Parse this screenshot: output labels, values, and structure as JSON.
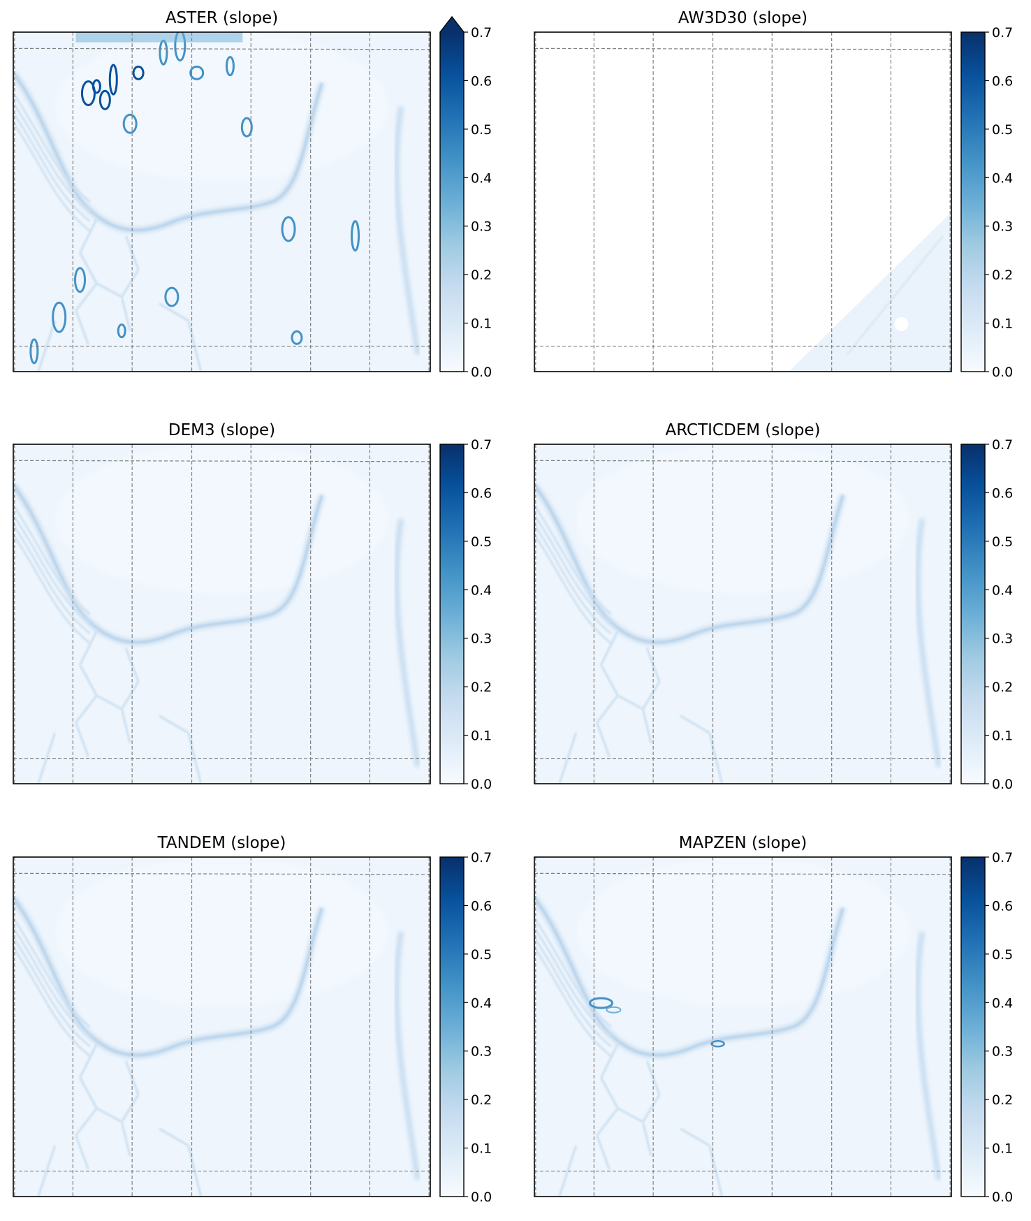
{
  "figure": {
    "colormap": "Blues",
    "colormap_stops": [
      "#f7fbff",
      "#deebf7",
      "#c6dbef",
      "#9ecae1",
      "#6baed6",
      "#4292c6",
      "#2171b5",
      "#08519c",
      "#08306b"
    ],
    "grid_color": "#808080",
    "axis_color": "#000000"
  },
  "chart_data": [
    {
      "type": "heatmap",
      "title": "ASTER (slope)",
      "colorbar": {
        "ticks": [
          "0.0",
          "0.1",
          "0.2",
          "0.3",
          "0.4",
          "0.5",
          "0.6",
          "0.7"
        ],
        "range": [
          0.0,
          0.7
        ],
        "extend": "max"
      },
      "grid": "dashed",
      "legend": "none",
      "description_values": {
        "typical_slope": 0.05,
        "max_slope": 0.7
      }
    },
    {
      "type": "heatmap",
      "title": "AW3D30 (slope)",
      "colorbar": {
        "ticks": [
          "0.0",
          "0.1",
          "0.2",
          "0.3",
          "0.4",
          "0.5",
          "0.6",
          "0.7"
        ],
        "range": [
          0.0,
          0.7
        ],
        "extend": "neither"
      },
      "grid": "dashed",
      "legend": "none",
      "description_values": {
        "typical_slope": 0.04,
        "max_slope": 0.15
      }
    },
    {
      "type": "heatmap",
      "title": "DEM3 (slope)",
      "colorbar": {
        "ticks": [
          "0.0",
          "0.1",
          "0.2",
          "0.3",
          "0.4",
          "0.5",
          "0.6",
          "0.7"
        ],
        "range": [
          0.0,
          0.7
        ],
        "extend": "neither"
      },
      "grid": "dashed",
      "legend": "none",
      "description_values": {
        "typical_slope": 0.04,
        "max_slope": 0.2
      }
    },
    {
      "type": "heatmap",
      "title": "ARCTICDEM (slope)",
      "colorbar": {
        "ticks": [
          "0.0",
          "0.1",
          "0.2",
          "0.3",
          "0.4",
          "0.5",
          "0.6",
          "0.7"
        ],
        "range": [
          0.0,
          0.7
        ],
        "extend": "neither"
      },
      "grid": "dashed",
      "legend": "none",
      "description_values": {
        "typical_slope": 0.04,
        "max_slope": 0.2
      }
    },
    {
      "type": "heatmap",
      "title": "TANDEM (slope)",
      "colorbar": {
        "ticks": [
          "0.0",
          "0.1",
          "0.2",
          "0.3",
          "0.4",
          "0.5",
          "0.6",
          "0.7"
        ],
        "range": [
          0.0,
          0.7
        ],
        "extend": "neither"
      },
      "grid": "dashed",
      "legend": "none",
      "description_values": {
        "typical_slope": 0.04,
        "max_slope": 0.2
      }
    },
    {
      "type": "heatmap",
      "title": "MAPZEN (slope)",
      "colorbar": {
        "ticks": [
          "0.0",
          "0.1",
          "0.2",
          "0.3",
          "0.4",
          "0.5",
          "0.6",
          "0.7"
        ],
        "range": [
          0.0,
          0.7
        ],
        "extend": "neither"
      },
      "grid": "dashed",
      "legend": "none",
      "description_values": {
        "typical_slope": 0.04,
        "max_slope": 0.4
      }
    }
  ]
}
